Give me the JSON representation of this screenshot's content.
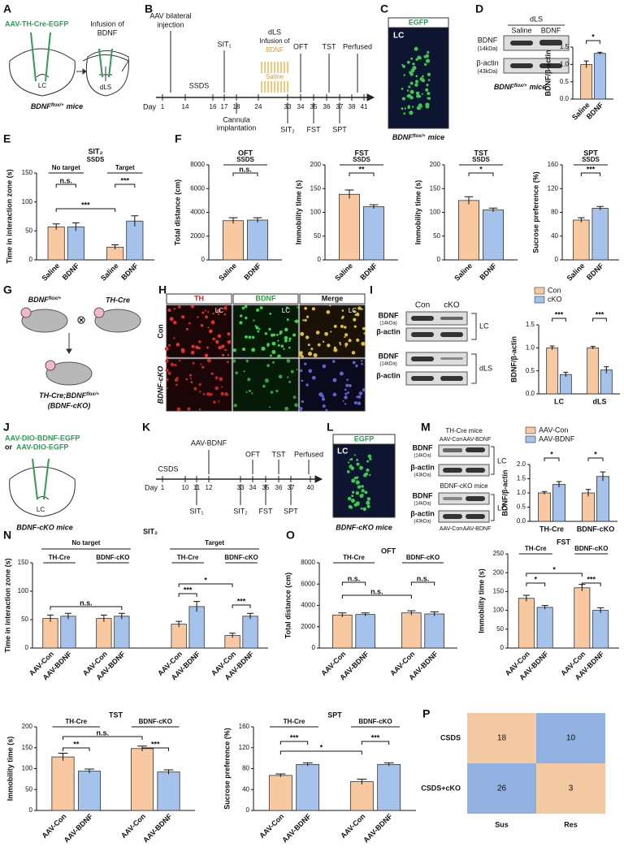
{
  "panel_letters": [
    "A",
    "B",
    "C",
    "D",
    "E",
    "F",
    "G",
    "H",
    "I",
    "J",
    "K",
    "L",
    "M",
    "N",
    "O",
    "P"
  ],
  "A": {
    "virus": "AAV-TH-Cre-EGFP",
    "infusion": "Infusion of",
    "infusion2": "BDNF",
    "lc": "LC",
    "dls": "dLS",
    "mouse": {
      "gene": "BDNF",
      "sup": "flox/+",
      "suffix": "mice"
    }
  },
  "B": {
    "injection": [
      "AAV bilateral",
      "injection"
    ],
    "ssds": "SSDS",
    "sit1": "SIT₁",
    "dls": "dLS",
    "infusion": "Infusion of",
    "bdnf": "BDNF",
    "saline": "Saline",
    "oft": "OFT",
    "tst": "TST",
    "perfused": "Perfused",
    "day": "Day",
    "days": [
      "1",
      "14",
      "16",
      "17",
      "18",
      "24",
      "33",
      "34",
      "35",
      "36",
      "37",
      "38",
      "41"
    ],
    "cannula": [
      "Cannula",
      "implantation"
    ],
    "sit2": "SIT₂",
    "fst": "FST",
    "spt": "SPT"
  },
  "C": {
    "label": "EGFP",
    "region": "LC",
    "mouse": {
      "gene": "BDNF",
      "sup": "flox/+",
      "suffix": "mice"
    }
  },
  "D": {
    "region": "dLS",
    "lanes": [
      "Saline",
      "BDNF"
    ],
    "bands": [
      {
        "name": "BDNF",
        "kda": "(14kDa)"
      },
      {
        "name": "β-actin",
        "kda": "(43kDa)"
      }
    ],
    "mouse": {
      "gene": "BDNF",
      "sup": "flox/+",
      "suffix": "mice"
    }
  },
  "G": {
    "mouse1": {
      "gene": "BDNF",
      "sup": "flox/+"
    },
    "cross": "⊗",
    "mouse2": "TH-Cre",
    "offspring": {
      "gene": "TH-Cre;BDNF",
      "sup": "flox/+"
    },
    "name": "(BDNF-cKO)"
  },
  "H": {
    "columns": [
      "TH",
      "BDNF",
      "Merge"
    ],
    "rows": [
      "Con",
      "BDNF-cKO"
    ],
    "region": "LC"
  },
  "I": {
    "lanes": [
      "Con",
      "cKO"
    ],
    "bands": [
      {
        "name": "BDNF",
        "kda": "(14kDa)"
      },
      {
        "name": "β-actin",
        "kda": "(43kDa)"
      },
      {
        "name": "BDNF",
        "kda": "(14kDa)"
      },
      {
        "name": "β-actin",
        "kda": "(43kDa)"
      }
    ],
    "regions": [
      "LC",
      "dLS"
    ]
  },
  "J": {
    "virus1": "AAV-DIO-BDNF-EGFP",
    "or": "or",
    "virus2": "AAV-DIO-EGFP",
    "lc": "LC",
    "mouse": "BDNF-cKO mice"
  },
  "K": {
    "csds": "CSDS",
    "aav": "AAV-BDNF",
    "oft": "OFT",
    "tst": "TST",
    "perfused": "Perfused",
    "day": "Day",
    "days": [
      "1",
      "10",
      "11",
      "12",
      "33",
      "34",
      "35",
      "36",
      "37",
      "40"
    ],
    "sit1": "SIT₁",
    "sit2": "SIT₂",
    "fst": "FST",
    "spt": "SPT"
  },
  "L": {
    "label": "EGFP",
    "region": "LC",
    "mouse": "BDNF-cKO mice"
  },
  "M": {
    "mouse1": "TH-Cre mice",
    "mouse2": "BDNF-cKO mice",
    "lanes": [
      "AAV-Con",
      "AAV-BDNF"
    ],
    "bands": [
      {
        "name": "BDNF",
        "kda": "(14kDa)"
      },
      {
        "name": "β-actin",
        "kda": "(43kDa)"
      }
    ],
    "region": "LC"
  },
  "chart_data": [
    {
      "type": "bar",
      "ylabel": "BDNF/β-actin",
      "ylim": [
        0,
        1.5
      ],
      "yticks": [
        {
          "value": 0,
          "label": "0.0"
        },
        0.5,
        {
          "value": 1,
          "label": "1.0"
        },
        1.5
      ],
      "categories": [
        null
      ],
      "category_labels": "top",
      "bar_labels": true,
      "series": [
        {
          "name": "Saline",
          "color": "#f8c9a0",
          "values": [
            1.0
          ],
          "errors": [
            0.1
          ]
        },
        {
          "name": "BDNF",
          "color": "#a4c2ea",
          "values": [
            1.32
          ],
          "errors": [
            0.03
          ]
        }
      ],
      "annotations": [
        "*"
      ]
    },
    {
      "type": "bar",
      "title": "SIT₂",
      "subtitle": "SSDS",
      "ylabel": "Time in interaction zone (s)",
      "ylim": [
        0,
        150
      ],
      "yticks": [
        0,
        50,
        100,
        150
      ],
      "categories": [
        "No target",
        "Target"
      ],
      "category_labels": "top",
      "bar_labels": true,
      "series": [
        {
          "name": "Saline",
          "color": "#f8c9a0",
          "values": [
            57,
            22
          ],
          "errors": [
            5,
            4
          ]
        },
        {
          "name": "BDNF",
          "color": "#a4c2ea",
          "values": [
            57,
            67
          ],
          "errors": [
            7,
            9
          ]
        }
      ],
      "annotations": [
        "n.s.",
        "***",
        "***"
      ]
    },
    {
      "type": "bar",
      "title": "OFT",
      "ylabel": "Total distance (cm)",
      "ylim": [
        0,
        8000
      ],
      "yticks": [
        0,
        2000,
        4000,
        6000,
        8000
      ],
      "categories": [
        "SSDS"
      ],
      "category_labels": "top",
      "bar_labels": true,
      "series": [
        {
          "name": "Saline",
          "color": "#f8c9a0",
          "values": [
            3300
          ],
          "errors": [
            250
          ]
        },
        {
          "name": "BDNF",
          "color": "#a4c2ea",
          "values": [
            3350
          ],
          "errors": [
            200
          ]
        }
      ],
      "annotations": [
        "n.s."
      ]
    },
    {
      "type": "bar",
      "title": "FST",
      "ylabel": "Immobility time (s)",
      "ylim": [
        0,
        200
      ],
      "yticks": [
        0,
        50,
        100,
        150,
        200
      ],
      "categories": [
        "SSDS"
      ],
      "category_labels": "top",
      "bar_labels": true,
      "series": [
        {
          "name": "Saline",
          "color": "#f8c9a0",
          "values": [
            138
          ],
          "errors": [
            9
          ]
        },
        {
          "name": "BDNF",
          "color": "#a4c2ea",
          "values": [
            112
          ],
          "errors": [
            4
          ]
        }
      ],
      "annotations": [
        "**"
      ]
    },
    {
      "type": "bar",
      "title": "TST",
      "ylabel": "Immobility time (s)",
      "ylim": [
        0,
        200
      ],
      "yticks": [
        0,
        50,
        100,
        150,
        200
      ],
      "categories": [
        "SSDS"
      ],
      "category_labels": "top",
      "bar_labels": true,
      "series": [
        {
          "name": "Saline",
          "color": "#f8c9a0",
          "values": [
            125
          ],
          "errors": [
            8
          ]
        },
        {
          "name": "BDNF",
          "color": "#a4c2ea",
          "values": [
            105
          ],
          "errors": [
            4
          ]
        }
      ],
      "annotations": [
        "*"
      ]
    },
    {
      "type": "bar",
      "title": "SPT",
      "ylabel": "Sucrose preference (%)",
      "ylim": [
        0,
        160
      ],
      "yticks": [
        0,
        40,
        80,
        120,
        160
      ],
      "categories": [
        "SSDS"
      ],
      "category_labels": "top",
      "bar_labels": true,
      "series": [
        {
          "name": "Saline",
          "color": "#f8c9a0",
          "values": [
            67
          ],
          "errors": [
            4
          ]
        },
        {
          "name": "BDNF",
          "color": "#a4c2ea",
          "values": [
            87
          ],
          "errors": [
            3
          ]
        }
      ],
      "annotations": [
        "***"
      ]
    },
    {
      "type": "bar",
      "ylabel": "BDNF/β-actin",
      "ylim": [
        0,
        1.5
      ],
      "yticks": [
        {
          "value": 0,
          "label": "0.0"
        },
        0.5,
        {
          "value": 1,
          "label": "1.0"
        },
        1.5
      ],
      "categories": [
        "LC",
        "dLS"
      ],
      "category_labels": "bottom",
      "bar_labels": false,
      "legend": "upper left",
      "series": [
        {
          "name": "Con",
          "color": "#f8c9a0",
          "values": [
            1.0,
            1.0
          ],
          "errors": [
            0.04,
            0.03
          ]
        },
        {
          "name": "cKO",
          "color": "#a4c2ea",
          "values": [
            0.42,
            0.52
          ],
          "errors": [
            0.05,
            0.07
          ]
        }
      ],
      "annotations": [
        "***",
        "***"
      ]
    },
    {
      "type": "bar",
      "ylabel": "BDNF/β-actin",
      "ylim": [
        0,
        2.0
      ],
      "yticks": [
        {
          "value": 0,
          "label": "0.0"
        },
        0.5,
        {
          "value": 1,
          "label": "1.0"
        },
        1.5,
        {
          "value": 2,
          "label": "2.0"
        }
      ],
      "categories": [
        "TH-Cre",
        "BDNF-cKO"
      ],
      "category_labels": "bottom",
      "bar_labels": false,
      "legend": "upper left",
      "series": [
        {
          "name": "AAV-Con",
          "color": "#f8c9a0",
          "values": [
            1.0,
            1.0
          ],
          "errors": [
            0.05,
            0.12
          ]
        },
        {
          "name": "AAV-BDNF",
          "color": "#a4c2ea",
          "values": [
            1.3,
            1.58
          ],
          "errors": [
            0.1,
            0.16
          ]
        }
      ],
      "annotations": [
        "*",
        "*"
      ]
    },
    {
      "type": "bar",
      "title": "SIT₂",
      "ylabel": "Time in interaction zone (s)",
      "ylim": [
        0,
        150
      ],
      "yticks": [
        0,
        50,
        100,
        150
      ],
      "groups": [
        "No target",
        "Target"
      ],
      "categories": [
        "TH-Cre",
        "BDNF-cKO",
        "TH-Cre",
        "BDNF-cKO"
      ],
      "category_labels": "top",
      "bar_labels": true,
      "series": [
        {
          "name": "AAV-Con",
          "color": "#f8c9a0",
          "values": [
            52,
            52,
            42,
            22
          ],
          "errors": [
            6,
            6,
            5,
            4
          ]
        },
        {
          "name": "AAV-BDNF",
          "color": "#a4c2ea",
          "values": [
            56,
            56,
            73,
            56
          ],
          "errors": [
            5,
            5,
            9,
            5
          ]
        }
      ],
      "annotations": [
        "n.s.",
        "***",
        "***",
        "*"
      ]
    },
    {
      "type": "bar",
      "title": "OFT",
      "ylabel": "Total distance (cm)",
      "ylim": [
        0,
        8000
      ],
      "yticks": [
        0,
        2000,
        4000,
        6000,
        8000
      ],
      "categories": [
        "TH-Cre",
        "BDNF-cKO"
      ],
      "category_labels": "top",
      "bar_labels": true,
      "series": [
        {
          "name": "AAV-Con",
          "color": "#f8c9a0",
          "values": [
            3100,
            3300
          ],
          "errors": [
            200,
            200
          ]
        },
        {
          "name": "AAV-BDNF",
          "color": "#a4c2ea",
          "values": [
            3150,
            3200
          ],
          "errors": [
            150,
            200
          ]
        }
      ],
      "annotations": [
        "n.s.",
        "n.s.",
        "n.s."
      ]
    },
    {
      "type": "bar",
      "title": "FST",
      "ylabel": "Immobility time (s)",
      "ylim": [
        0,
        250
      ],
      "yticks": [
        0,
        50,
        100,
        150,
        200,
        250
      ],
      "categories": [
        "TH-Cre",
        "BDNF-cKO"
      ],
      "category_labels": "top",
      "bar_labels": true,
      "series": [
        {
          "name": "AAV-Con",
          "color": "#f8c9a0",
          "values": [
            132,
            160
          ],
          "errors": [
            8,
            9
          ]
        },
        {
          "name": "AAV-BDNF",
          "color": "#a4c2ea",
          "values": [
            108,
            100
          ],
          "errors": [
            5,
            7
          ]
        }
      ],
      "annotations": [
        "*",
        "*",
        "***"
      ]
    },
    {
      "type": "bar",
      "title": "TST",
      "ylabel": "Immobility time (s)",
      "ylim": [
        0,
        200
      ],
      "yticks": [
        0,
        50,
        100,
        150,
        200
      ],
      "categories": [
        "TH-Cre",
        "BDNF-cKO"
      ],
      "category_labels": "top",
      "bar_labels": true,
      "series": [
        {
          "name": "AAV-Con",
          "color": "#f8c9a0",
          "values": [
            128,
            148
          ],
          "errors": [
            9,
            6
          ]
        },
        {
          "name": "AAV-BDNF",
          "color": "#a4c2ea",
          "values": [
            94,
            92
          ],
          "errors": [
            5,
            5
          ]
        }
      ],
      "annotations": [
        "**",
        "n.s.",
        "***"
      ]
    },
    {
      "type": "bar",
      "title": "SPT",
      "ylabel": "Sucrose preference (%)",
      "ylim": [
        0,
        160
      ],
      "yticks": [
        0,
        40,
        80,
        120,
        160
      ],
      "categories": [
        "TH-Cre",
        "BDNF-cKO"
      ],
      "category_labels": "top",
      "bar_labels": true,
      "series": [
        {
          "name": "AAV-Con",
          "color": "#f8c9a0",
          "values": [
            67,
            55
          ],
          "errors": [
            3,
            5
          ]
        },
        {
          "name": "AAV-BDNF",
          "color": "#a4c2ea",
          "values": [
            88,
            88
          ],
          "errors": [
            3,
            3
          ]
        }
      ],
      "annotations": [
        "***",
        "*",
        "***"
      ]
    },
    {
      "type": "heatmap",
      "rows": [
        "CSDS",
        "CSDS+cKO"
      ],
      "columns": [
        "Sus",
        "Res"
      ],
      "values": [
        [
          18,
          10
        ],
        [
          26,
          3
        ]
      ],
      "cell_colors": [
        [
          "#f3c9a1",
          "#91b1e0"
        ],
        [
          "#91b1e0",
          "#f3c9a1"
        ]
      ]
    }
  ]
}
